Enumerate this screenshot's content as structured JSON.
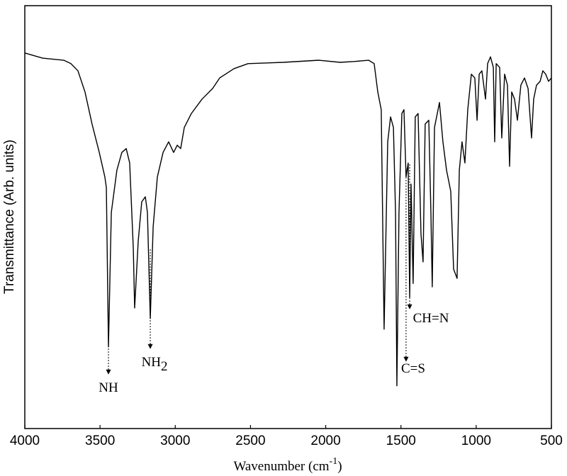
{
  "chart_data": {
    "type": "line",
    "xlabel": {
      "text": "Wavenumber (cm",
      "superscript": "-1",
      "suffix": ")"
    },
    "ylabel": "Transmittance (Arb. units)",
    "xlim": [
      4000,
      500
    ],
    "xticks": [
      4000,
      3500,
      3000,
      2500,
      2000,
      1500,
      1000,
      500
    ],
    "ylim": [
      0,
      100
    ],
    "color": "#000000",
    "x": [
      4000,
      3882,
      3741,
      3694,
      3647,
      3600,
      3553,
      3505,
      3468,
      3458,
      3444,
      3425,
      3388,
      3355,
      3326,
      3303,
      3279,
      3270,
      3246,
      3223,
      3199,
      3185,
      3166,
      3147,
      3119,
      3081,
      3044,
      3011,
      2987,
      2964,
      2940,
      2893,
      2822,
      2752,
      2705,
      2610,
      2516,
      2281,
      2045,
      1904,
      1810,
      1715,
      1678,
      1654,
      1631,
      1612,
      1588,
      1569,
      1550,
      1536,
      1527,
      1513,
      1494,
      1480,
      1466,
      1452,
      1442,
      1433,
      1419,
      1405,
      1386,
      1367,
      1353,
      1339,
      1315,
      1301,
      1292,
      1277,
      1244,
      1221,
      1197,
      1169,
      1150,
      1127,
      1112,
      1094,
      1075,
      1056,
      1032,
      1009,
      994,
      980,
      962,
      938,
      924,
      905,
      886,
      877,
      867,
      844,
      830,
      811,
      792,
      778,
      764,
      745,
      726,
      703,
      679,
      655,
      632,
      618,
      599,
      575,
      557,
      538,
      519,
      500
    ],
    "values": [
      88.8,
      87.6,
      87.1,
      86.3,
      84.6,
      79.6,
      72.0,
      65.3,
      59.5,
      57.0,
      19.3,
      51.1,
      61.1,
      65.3,
      66.2,
      62.8,
      42.7,
      28.5,
      44.4,
      53.6,
      54.8,
      51.1,
      26.0,
      47.7,
      59.5,
      65.3,
      67.8,
      65.3,
      67.0,
      66.2,
      71.2,
      74.5,
      77.9,
      80.4,
      82.9,
      85.1,
      86.3,
      86.6,
      87.1,
      86.6,
      86.8,
      87.1,
      86.3,
      79.6,
      75.4,
      23.5,
      67.8,
      73.7,
      71.2,
      51.1,
      10.1,
      51.1,
      74.5,
      75.4,
      59.5,
      62.8,
      31.0,
      57.8,
      34.3,
      73.7,
      74.5,
      46.1,
      39.4,
      72.0,
      72.9,
      51.1,
      33.5,
      71.2,
      77.1,
      67.8,
      61.1,
      56.1,
      37.7,
      35.5,
      61.1,
      67.8,
      62.8,
      75.4,
      83.8,
      82.9,
      72.9,
      83.8,
      84.6,
      77.9,
      86.3,
      87.9,
      85.4,
      67.8,
      86.3,
      85.4,
      68.7,
      83.8,
      81.2,
      62.0,
      79.6,
      77.9,
      72.9,
      81.2,
      82.9,
      80.4,
      68.7,
      77.9,
      81.2,
      82.1,
      84.6,
      83.8,
      82.1,
      82.9
    ],
    "annotations": [
      {
        "label": "NH",
        "x": 3444
      },
      {
        "label": "NH",
        "subscript": "2",
        "x": 3166
      },
      {
        "label": "CH=N",
        "x": 1442
      },
      {
        "label": "C=S",
        "x": 1466
      }
    ]
  }
}
